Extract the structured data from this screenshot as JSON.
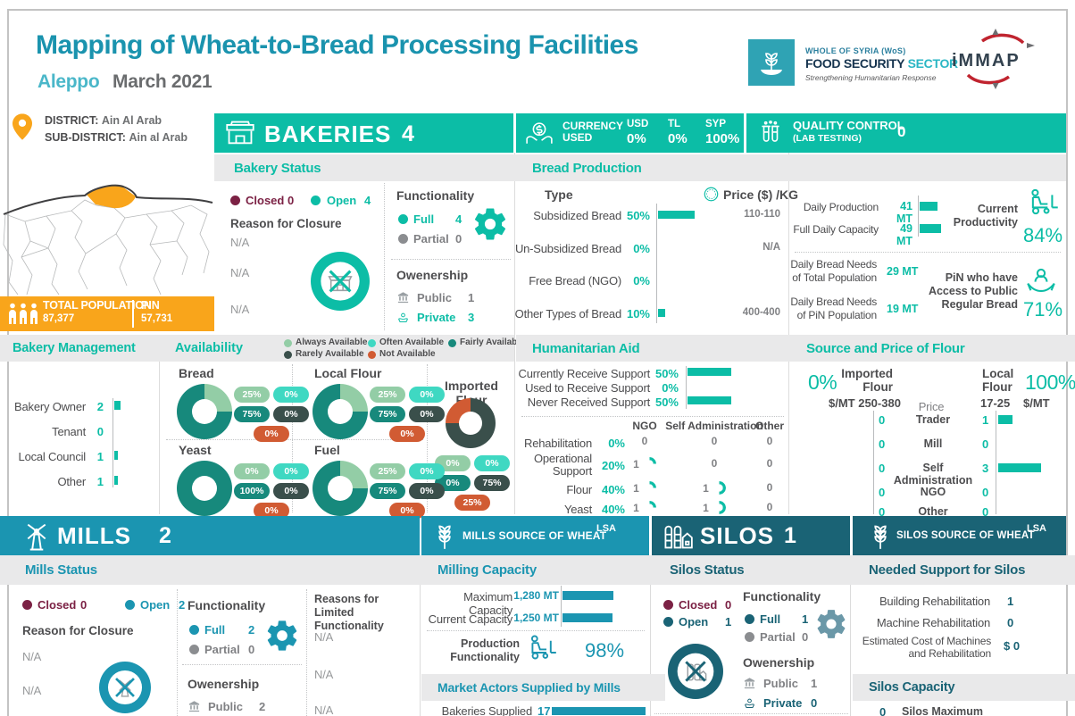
{
  "colors": {
    "teal": "#0cbda6",
    "blue": "#1b95b1",
    "petrol": "#1a6375",
    "orange": "#f9a51b",
    "maroon": "#7b2144",
    "title_teal": "#1a93ae",
    "location_teal": "#4ab7c9",
    "dark": "#4d4d4f",
    "gray": "#808184",
    "na_gray": "#97999b",
    "subheader_bg": "#e9e9ea",
    "logo_red": "#c0242f",
    "logo_navy": "#33424f",
    "availability": {
      "always": "#93cda6",
      "often": "#3fd8c2",
      "fairly": "#17897c",
      "rarely": "#3a4f4b",
      "not": "#d15b33"
    }
  },
  "icons": {
    "location-pin": "map pin",
    "population": "three people",
    "bakery": "storefront",
    "currency": "hands with dollar coin",
    "quality": "lab test tubes",
    "price": "dollar coin",
    "productivity": "pallet truck",
    "pin-access": "hands holding person",
    "gear": "gear",
    "public": "bank building",
    "private": "hands holding coin",
    "mill": "windmill",
    "silo": "grain silos",
    "wheat": "wheat stalk",
    "closed-facility": "crossed-out facility"
  },
  "header": {
    "title": "Mapping of Wheat-to-Bread Processing Facilities",
    "location": "Aleppo",
    "date": "March 2021"
  },
  "logos": {
    "wfs_line1": "WHOLE OF SYRIA (WoS)",
    "wfs_line2a": "FOOD SECURITY",
    "wfs_line2b": "SECTOR",
    "wfs_tagline": "Strengthening Humanitarian Response",
    "immap": "iMMAP"
  },
  "district": {
    "label": "DISTRICT:",
    "value": "Ain Al Arab",
    "sub_label": "SUB-DISTRICT:",
    "sub_value": "Ain al Arab"
  },
  "population": {
    "total_label": "TOTAL POPULATION",
    "total_value": "87,377",
    "pin_label": "PIN",
    "pin_value": "57,731"
  },
  "bakeries": {
    "header": {
      "title": "BAKERIES",
      "count": "4"
    },
    "currency": {
      "label1": "CURRENCY",
      "label2": "USED",
      "items": [
        {
          "label": "USD",
          "value": "0%"
        },
        {
          "label": "TL",
          "value": "0%"
        },
        {
          "label": "SYP",
          "value": "100%"
        }
      ]
    },
    "quality": {
      "label1": "QUALITY CONTROL",
      "label2": "(LAB TESTING)",
      "value": "0"
    },
    "status": {
      "title": "Bakery Status",
      "closed_label": "Closed",
      "closed_value": "0",
      "open_label": "Open",
      "open_value": "4",
      "reason_title": "Reason for Closure",
      "reasons": [
        "N/A",
        "N/A",
        "N/A"
      ],
      "functionality": {
        "title": "Functionality",
        "full_label": "Full",
        "full_value": "4",
        "partial_label": "Partial",
        "partial_value": "0"
      },
      "ownership": {
        "title": "Owenership",
        "public_label": "Public",
        "public_value": "1",
        "private_label": "Private",
        "private_value": "3"
      }
    },
    "production": {
      "title": "Bread Production",
      "col_type": "Type",
      "col_price": "Price ($) /KG",
      "rows": [
        {
          "type": "Subsidized Bread",
          "pct": "50%",
          "pct_num": 50,
          "price": "110-110"
        },
        {
          "type": "Un-Subsidized Bread",
          "pct": "0%",
          "pct_num": 0,
          "price": "N/A"
        },
        {
          "type": "Free Bread (NGO)",
          "pct": "0%",
          "pct_num": 0,
          "price": ""
        },
        {
          "type": "Other Types of Bread",
          "pct": "10%",
          "pct_num": 10,
          "price": "400-400"
        }
      ]
    },
    "daily": {
      "production_label": "Daily Production",
      "production_value": "41 MT",
      "production_num": 41,
      "capacity_label": "Full Daily Capacity",
      "capacity_value": "49 MT",
      "capacity_num": 49,
      "productivity_label": "Current Productivity",
      "productivity_value": "84%",
      "needs_total_label_1": "Daily Bread Needs",
      "needs_total_label_2": "of Total Population",
      "needs_total_value": "29 MT",
      "needs_pin_label_1": "Daily Bread Needs",
      "needs_pin_label_2": "of PiN Population",
      "needs_pin_value": "19 MT",
      "access_label_1": "PiN who have",
      "access_label_2": "Access to Public",
      "access_label_3": "Regular Bread",
      "access_value": "71%"
    },
    "management": {
      "title": "Bakery Management",
      "rows": [
        {
          "label": "Bakery Owner",
          "value": "2",
          "num": 2
        },
        {
          "label": "Tenant",
          "value": "0",
          "num": 0
        },
        {
          "label": "Local Council",
          "value": "1",
          "num": 1
        },
        {
          "label": "Other",
          "value": "1",
          "num": 1
        }
      ]
    },
    "availability": {
      "title": "Availability",
      "legend": [
        {
          "label": "Always Available",
          "cat": "always"
        },
        {
          "label": "Often Available",
          "cat": "often"
        },
        {
          "label": "Fairly Available",
          "cat": "fairly"
        },
        {
          "label": "Rarely Available",
          "cat": "rarely"
        },
        {
          "label": "Not Available",
          "cat": "not"
        }
      ],
      "items": [
        {
          "name": "Bread",
          "pills": [
            {
              "cat": "always",
              "text": "25%"
            },
            {
              "cat": "often",
              "text": "0%"
            },
            {
              "cat": "fairly",
              "text": "75%"
            },
            {
              "cat": "rarely",
              "text": "0%"
            },
            {
              "cat": "not",
              "text": "0%"
            }
          ],
          "donut": [
            {
              "cat": "always",
              "p": 25
            },
            {
              "cat": "fairly",
              "p": 75
            }
          ]
        },
        {
          "name": "Local Flour",
          "pills": [
            {
              "cat": "always",
              "text": "25%"
            },
            {
              "cat": "often",
              "text": "0%"
            },
            {
              "cat": "fairly",
              "text": "75%"
            },
            {
              "cat": "rarely",
              "text": "0%"
            },
            {
              "cat": "not",
              "text": "0%"
            }
          ],
          "donut": [
            {
              "cat": "always",
              "p": 25
            },
            {
              "cat": "fairly",
              "p": 75
            }
          ]
        },
        {
          "name": "Imported Flour",
          "pills": [
            {
              "cat": "always",
              "text": "0%"
            },
            {
              "cat": "often",
              "text": "0%"
            },
            {
              "cat": "fairly",
              "text": "0%"
            },
            {
              "cat": "rarely",
              "text": "75%"
            },
            {
              "cat": "not",
              "text": "25%"
            }
          ],
          "donut": [
            {
              "cat": "rarely",
              "p": 75
            },
            {
              "cat": "not",
              "p": 25
            }
          ]
        },
        {
          "name": "Yeast",
          "pills": [
            {
              "cat": "always",
              "text": "0%"
            },
            {
              "cat": "often",
              "text": "0%"
            },
            {
              "cat": "fairly",
              "text": "100%"
            },
            {
              "cat": "rarely",
              "text": "0%"
            },
            {
              "cat": "not",
              "text": "0%"
            }
          ],
          "donut": [
            {
              "cat": "fairly",
              "p": 100
            }
          ]
        },
        {
          "name": "Fuel",
          "pills": [
            {
              "cat": "always",
              "text": "25%"
            },
            {
              "cat": "often",
              "text": "0%"
            },
            {
              "cat": "fairly",
              "text": "75%"
            },
            {
              "cat": "rarely",
              "text": "0%"
            },
            {
              "cat": "not",
              "text": "0%"
            }
          ],
          "donut": [
            {
              "cat": "always",
              "p": 25
            },
            {
              "cat": "fairly",
              "p": 75
            }
          ]
        }
      ]
    },
    "humanitarian": {
      "title": "Humanitarian Aid",
      "support_rows": [
        {
          "label": "Currently Receive Support",
          "pct": "50%",
          "num": 50
        },
        {
          "label": "Used to Receive Support",
          "pct": "0%",
          "num": 0
        },
        {
          "label": "Never Received Support",
          "pct": "50%",
          "num": 50
        }
      ],
      "cols": [
        "NGO",
        "Self Administration",
        "Other"
      ],
      "rows": [
        {
          "label": "Rehabilitation",
          "pct": "0%",
          "cells": [
            {
              "v": "0",
              "arc": 0
            },
            {
              "v": "0",
              "arc": 0
            },
            {
              "v": "0",
              "arc": 0
            }
          ]
        },
        {
          "label": "Operational Support",
          "pct": "20%",
          "cells": [
            {
              "v": "1",
              "arc": 0.25
            },
            {
              "v": "0",
              "arc": 0
            },
            {
              "v": "0",
              "arc": 0
            }
          ]
        },
        {
          "label": "Flour",
          "pct": "40%",
          "cells": [
            {
              "v": "1",
              "arc": 0.25
            },
            {
              "v": "1",
              "arc": 0.5
            },
            {
              "v": "0",
              "arc": 0
            }
          ]
        },
        {
          "label": "Yeast",
          "pct": "40%",
          "cells": [
            {
              "v": "1",
              "arc": 0.25
            },
            {
              "v": "1",
              "arc": 0.5
            },
            {
              "v": "0",
              "arc": 0
            }
          ]
        }
      ]
    },
    "flour": {
      "title": "Source and Price of Flour",
      "imported_pct": "0%",
      "imported_label_1": "Imported",
      "imported_label_2": "Flour",
      "imported_price": "$/MT 250-380",
      "local_label_1": "Local",
      "local_label_2": "Flour",
      "local_pct": "100%",
      "local_price": "17-25",
      "local_unit": "$/MT",
      "price_label": "Price",
      "rows": [
        {
          "label": "Trader",
          "imported": "0",
          "local": "1",
          "local_num": 1
        },
        {
          "label": "Mill",
          "imported": "0",
          "local": "0",
          "local_num": 0
        },
        {
          "label": "Self Administration",
          "imported": "0",
          "local": "3",
          "local_num": 3
        },
        {
          "label": "NGO",
          "imported": "0",
          "local": "0",
          "local_num": 0
        },
        {
          "label": "Other",
          "imported": "0",
          "local": "0",
          "local_num": 0
        }
      ]
    }
  },
  "mills": {
    "header": {
      "title": "MILLS",
      "count": "2"
    },
    "status": {
      "title": "Mills Status",
      "closed_label": "Closed",
      "closed_value": "0",
      "open_label": "Open",
      "open_value": "2",
      "reason_title": "Reason for Closure",
      "reasons": [
        "N/A",
        "N/A"
      ],
      "functionality": {
        "title": "Functionality",
        "full_label": "Full",
        "full_value": "2",
        "partial_label": "Partial",
        "partial_value": "0"
      },
      "limited_title_1": "Reasons for Limited",
      "limited_title_2": "Functionality",
      "limited_reasons": [
        "N/A",
        "N/A",
        "N/A"
      ],
      "ownership": {
        "title": "Owenership",
        "public_label": "Public",
        "public_value": "2"
      }
    },
    "source": {
      "title": "MILLS SOURCE OF WHEAT",
      "badge": "LSA"
    },
    "capacity": {
      "title": "Milling Capacity",
      "max_label": "Maximum Capacity",
      "max_value": "1,280 MT",
      "max_num": 1280,
      "current_label": "Current Capacity",
      "current_value": "1,250 MT",
      "current_num": 1250,
      "prod_label_1": "Production",
      "prod_label_2": "Functionality",
      "prod_value": "98%"
    },
    "market": {
      "title": "Market Actors Supplied by Mills",
      "row_label": "Bakeries Supplied",
      "row_value": "17",
      "row_num": 17
    }
  },
  "silos": {
    "header": {
      "title": "SILOS",
      "count": "1"
    },
    "status": {
      "title": "Silos Status",
      "closed_label": "Closed",
      "closed_value": "0",
      "open_label": "Open",
      "open_value": "1",
      "functionality": {
        "title": "Functionality",
        "full_label": "Full",
        "full_value": "1",
        "partial_label": "Partial",
        "partial_value": "0"
      },
      "ownership": {
        "title": "Owenership",
        "public_label": "Public",
        "public_value": "1",
        "private_label": "Private",
        "private_value": "0"
      }
    },
    "source": {
      "title": "SILOS SOURCE OF WHEAT",
      "badge": "LSA"
    },
    "support": {
      "title": "Needed Support for Silos",
      "rows": [
        {
          "label": "Building Rehabilitation",
          "value": "1"
        },
        {
          "label": "Machine Rehabilitation",
          "value": "0"
        }
      ],
      "cost_label_1": "Estimated Cost of Machines",
      "cost_label_2": "and Rehabilitation",
      "cost_value": "$ 0"
    },
    "capacity": {
      "title": "Silos Capacity",
      "partial_value": "0",
      "partial_label": "Silos Maximum"
    }
  }
}
